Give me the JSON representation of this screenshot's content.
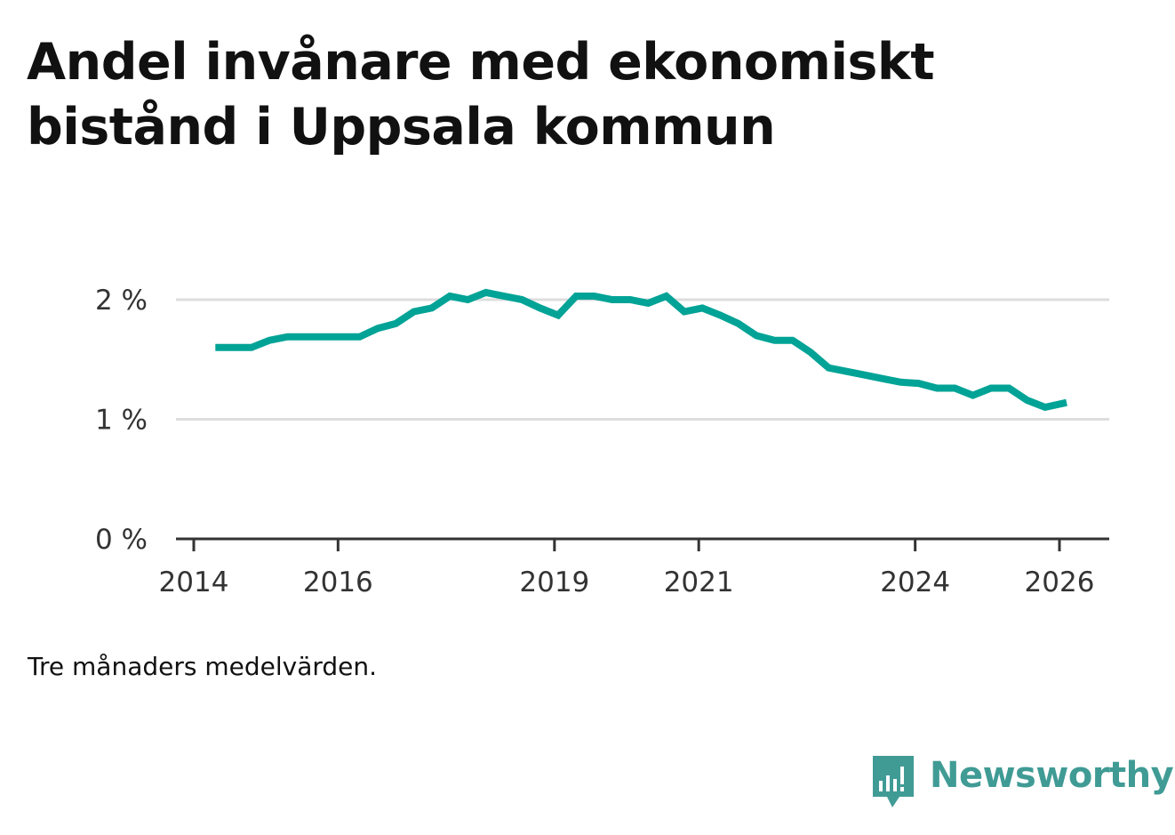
{
  "title": "Andel invånare med ekonomiskt bistånd i Uppsala kommun",
  "note": "Tre månaders medelvärden.",
  "brand": {
    "name": "Newsworthy",
    "icon": "bar-chart-speech-bubble-icon"
  },
  "colors": {
    "line": "#00a396",
    "grid": "#dddddd",
    "axis": "#333333",
    "brand": "#409b95"
  },
  "chart_data": {
    "type": "line",
    "title": "Andel invånare med ekonomiskt bistånd i Uppsala kommun",
    "xlabel": "",
    "ylabel": "",
    "xlim": [
      2014,
      2026.2
    ],
    "ylim": [
      0,
      2.3
    ],
    "grid": true,
    "y_ticks": [
      {
        "value": 0,
        "label": "0 %"
      },
      {
        "value": 1,
        "label": "1 %"
      },
      {
        "value": 2,
        "label": "2 %"
      }
    ],
    "x_ticks": [
      {
        "value": 2014,
        "label": "2014"
      },
      {
        "value": 2016,
        "label": "2016"
      },
      {
        "value": 2019,
        "label": "2019"
      },
      {
        "value": 2021,
        "label": "2021"
      },
      {
        "value": 2024,
        "label": "2024"
      },
      {
        "value": 2026,
        "label": "2026"
      }
    ],
    "series": [
      {
        "name": "Andel invånare med ekonomiskt bistånd",
        "x": [
          2014.3,
          2014.55,
          2014.8,
          2015.05,
          2015.3,
          2015.55,
          2015.8,
          2016.05,
          2016.3,
          2016.55,
          2016.8,
          2017.05,
          2017.3,
          2017.55,
          2017.8,
          2018.05,
          2018.3,
          2018.55,
          2018.8,
          2019.05,
          2019.3,
          2019.55,
          2019.8,
          2020.05,
          2020.3,
          2020.55,
          2020.8,
          2021.05,
          2021.3,
          2021.55,
          2021.8,
          2022.05,
          2022.3,
          2022.55,
          2022.8,
          2023.05,
          2023.3,
          2023.55,
          2023.8,
          2024.05,
          2024.3,
          2024.55,
          2024.8,
          2025.05,
          2025.3,
          2025.55,
          2025.8,
          2026.1
        ],
        "values": [
          1.6,
          1.6,
          1.6,
          1.66,
          1.69,
          1.69,
          1.69,
          1.69,
          1.69,
          1.76,
          1.8,
          1.9,
          1.93,
          2.03,
          2.0,
          2.06,
          2.03,
          2.0,
          1.93,
          1.87,
          2.03,
          2.03,
          2.0,
          2.0,
          1.97,
          2.03,
          1.9,
          1.93,
          1.87,
          1.8,
          1.7,
          1.66,
          1.66,
          1.56,
          1.43,
          1.4,
          1.37,
          1.34,
          1.31,
          1.3,
          1.26,
          1.26,
          1.2,
          1.26,
          1.26,
          1.16,
          1.1,
          1.14
        ]
      }
    ]
  }
}
